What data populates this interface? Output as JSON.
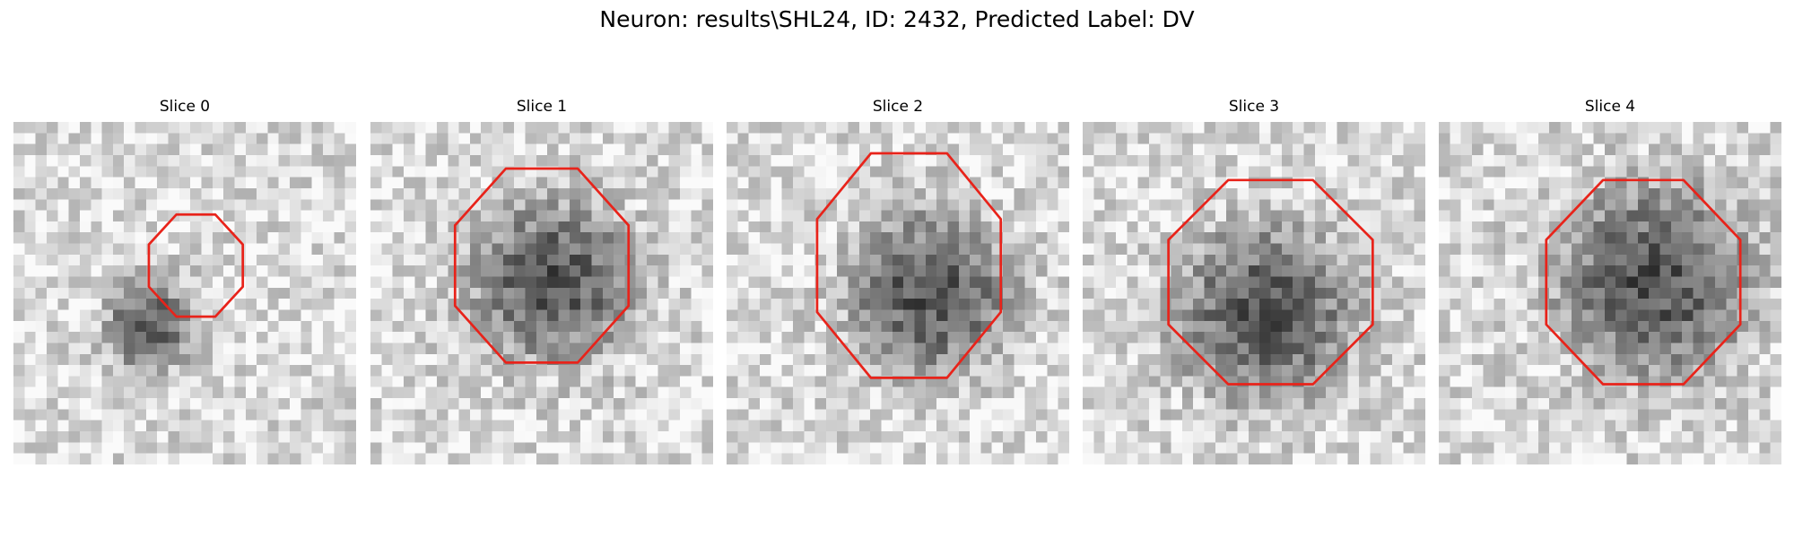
{
  "figure": {
    "title": "Neuron: results\\SHL24, ID: 2432, Predicted Label: DV"
  },
  "panels": [
    {
      "title": "Slice 0"
    },
    {
      "title": "Slice 1"
    },
    {
      "title": "Slice 2"
    },
    {
      "title": "Slice 3"
    },
    {
      "title": "Slice 4"
    }
  ],
  "colors": {
    "contour": "#e8231a",
    "background": "#ffffff"
  }
}
